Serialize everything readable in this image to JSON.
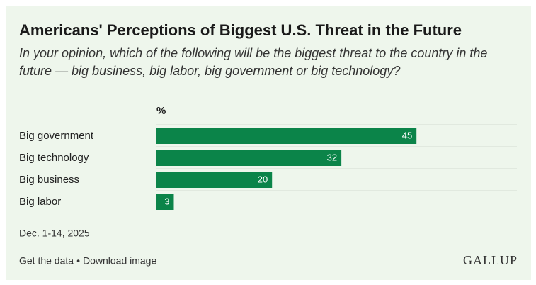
{
  "chart_data": {
    "type": "bar",
    "orientation": "horizontal",
    "title": "Americans' Perceptions of Biggest U.S. Threat in the Future",
    "subtitle": "In your opinion, which of the following will be the biggest threat to the country in the future — big business, big labor, big government or big technology?",
    "unit_label": "%",
    "categories": [
      "Big government",
      "Big technology",
      "Big business",
      "Big labor"
    ],
    "values": [
      45,
      32,
      20,
      3
    ],
    "color": "#0b8449",
    "note": "Dec. 1-14, 2025"
  },
  "footer": {
    "links": [
      "Get the data",
      "Download image"
    ],
    "separator": "•",
    "brand": "GALLUP"
  }
}
